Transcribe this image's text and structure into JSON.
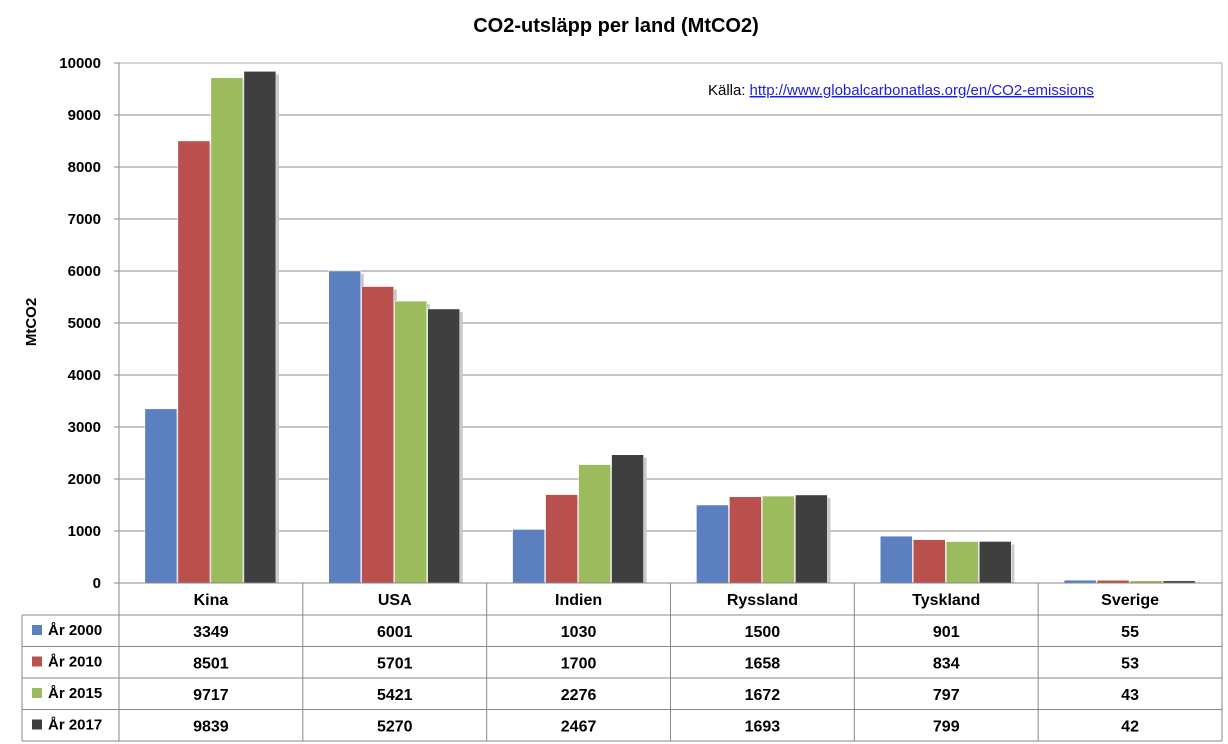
{
  "chart_data": {
    "type": "bar",
    "title": "CO2-utsläpp per land (MtCO2)",
    "ylabel": "MtCO2",
    "xlabel": "",
    "ylim": [
      0,
      10000
    ],
    "yticks": [
      0,
      1000,
      2000,
      3000,
      4000,
      5000,
      6000,
      7000,
      8000,
      9000,
      10000
    ],
    "grid": true,
    "legend": "data table, left",
    "categories": [
      "Kina",
      "USA",
      "Indien",
      "Ryssland",
      "Tyskland",
      "Sverige"
    ],
    "series": [
      {
        "name": "År 2000",
        "color": "#5b7fbf",
        "values": [
          3349,
          6001,
          1030,
          1500,
          901,
          55
        ]
      },
      {
        "name": "År 2010",
        "color": "#b9504d",
        "values": [
          8501,
          5701,
          1700,
          1658,
          834,
          53
        ]
      },
      {
        "name": "År 2015",
        "color": "#9cbb5c",
        "values": [
          9717,
          5421,
          2276,
          1672,
          797,
          43
        ]
      },
      {
        "name": "År 2017",
        "color": "#3f3f3f",
        "values": [
          9839,
          5270,
          2467,
          1693,
          799,
          42
        ]
      }
    ],
    "annotation": {
      "prefix": "Källa:",
      "link": "http://www.globalcarbonatlas.org/en/CO2-emissions"
    }
  }
}
